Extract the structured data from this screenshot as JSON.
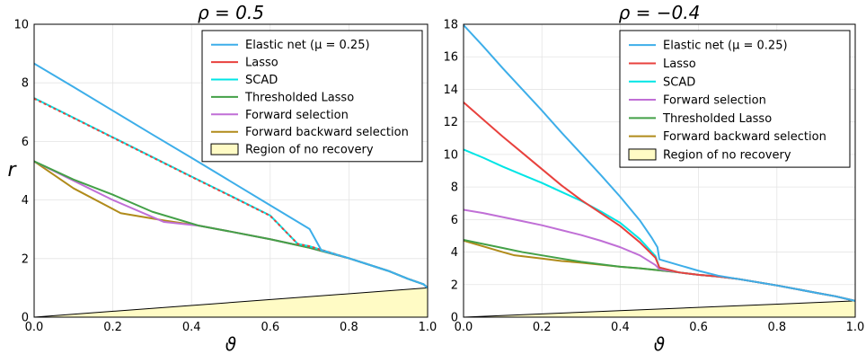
{
  "chart_data": [
    {
      "type": "line",
      "title": "ρ = 0.5",
      "xlabel": "ϑ",
      "ylabel": "r",
      "xlim": [
        0,
        1
      ],
      "ylim": [
        0,
        10
      ],
      "xticks": [
        "0.0",
        "0.2",
        "0.4",
        "0.6",
        "0.8",
        "1.0"
      ],
      "yticks": [
        "0",
        "2",
        "4",
        "6",
        "8",
        "10"
      ],
      "grid": true,
      "legend_position": "top-right",
      "legend": [
        {
          "label": "Elastic net (μ = 0.25)",
          "color": "#3daee9"
        },
        {
          "label": "Lasso",
          "color": "#e8413d"
        },
        {
          "label": "SCAD",
          "color": "#00e5e5"
        },
        {
          "label": "Thresholded Lasso",
          "color": "#43a047"
        },
        {
          "label": "Forward selection",
          "color": "#c06fd6"
        },
        {
          "label": "Forward backward selection",
          "color": "#b08b1a"
        },
        {
          "label": "Region of no recovery",
          "color": "#fffbc5",
          "kind": "area"
        }
      ],
      "series": [
        {
          "name": "Region of no recovery",
          "kind": "area",
          "color": "#fffbc5",
          "x": [
            0,
            1
          ],
          "y": [
            0,
            1
          ]
        },
        {
          "name": "Elastic net (μ = 0.25)",
          "color": "#3daee9",
          "x": [
            0,
            0.1,
            0.2,
            0.3,
            0.4,
            0.5,
            0.6,
            0.7,
            0.73,
            0.8,
            0.9,
            0.95,
            0.99,
            1.0
          ],
          "y": [
            8.66,
            7.86,
            7.05,
            6.24,
            5.44,
            4.63,
            3.82,
            3.01,
            2.28,
            2.01,
            1.58,
            1.31,
            1.12,
            1.0
          ]
        },
        {
          "name": "Lasso",
          "color": "#e8413d",
          "dash": "3,3",
          "x": [
            0,
            0.1,
            0.2,
            0.3,
            0.4,
            0.5,
            0.6,
            0.67,
            0.7,
            0.8,
            0.9,
            0.95,
            0.99,
            1.0
          ],
          "y": [
            7.46,
            6.8,
            6.13,
            5.46,
            4.79,
            4.13,
            3.46,
            2.5,
            2.42,
            2.01,
            1.58,
            1.31,
            1.12,
            1.0
          ]
        },
        {
          "name": "SCAD",
          "color": "#00e5e5",
          "x": [
            0,
            0.1,
            0.2,
            0.3,
            0.4,
            0.5,
            0.6,
            0.67,
            0.7,
            0.8,
            0.9,
            0.95,
            0.99,
            1.0
          ],
          "y": [
            7.48,
            6.81,
            6.14,
            5.47,
            4.8,
            4.14,
            3.47,
            2.5,
            2.42,
            2.01,
            1.58,
            1.31,
            1.12,
            1.0
          ]
        },
        {
          "name": "Thresholded Lasso",
          "color": "#43a047",
          "x": [
            0,
            0.1,
            0.2,
            0.3,
            0.42,
            0.5,
            0.6,
            0.7,
            0.8,
            0.9,
            0.95,
            0.99,
            1.0
          ],
          "y": [
            5.32,
            4.7,
            4.18,
            3.6,
            3.12,
            2.92,
            2.66,
            2.37,
            2.01,
            1.58,
            1.31,
            1.12,
            1.0
          ]
        },
        {
          "name": "Forward selection",
          "color": "#c06fd6",
          "x": [
            0,
            0.1,
            0.2,
            0.33,
            0.42,
            0.5,
            0.6,
            0.7,
            0.8,
            0.9,
            0.95,
            0.99,
            1.0
          ],
          "y": [
            5.32,
            4.66,
            4.0,
            3.25,
            3.12,
            2.92,
            2.66,
            2.37,
            2.01,
            1.58,
            1.31,
            1.12,
            1.0
          ]
        },
        {
          "name": "Forward backward selection",
          "color": "#b08b1a",
          "x": [
            0,
            0.1,
            0.22,
            0.33,
            0.42,
            0.5,
            0.6,
            0.7,
            0.8,
            0.9,
            0.95,
            0.99,
            1.0
          ],
          "y": [
            5.32,
            4.4,
            3.55,
            3.3,
            3.12,
            2.92,
            2.66,
            2.37,
            2.01,
            1.58,
            1.31,
            1.12,
            1.0
          ]
        }
      ]
    },
    {
      "type": "line",
      "title": "ρ = −0.4",
      "xlabel": "ϑ",
      "ylabel": "",
      "xlim": [
        0,
        1
      ],
      "ylim": [
        0,
        18
      ],
      "xticks": [
        "0.0",
        "0.2",
        "0.4",
        "0.6",
        "0.8",
        "1.0"
      ],
      "yticks": [
        "0",
        "2",
        "4",
        "6",
        "8",
        "10",
        "12",
        "14",
        "16",
        "18"
      ],
      "grid": true,
      "legend_position": "top-right",
      "legend": [
        {
          "label": "Elastic net (μ = 0.25)",
          "color": "#3daee9"
        },
        {
          "label": "Lasso",
          "color": "#e8413d"
        },
        {
          "label": "SCAD",
          "color": "#00e5e5"
        },
        {
          "label": "Forward selection",
          "color": "#c06fd6"
        },
        {
          "label": "Thresholded Lasso",
          "color": "#43a047"
        },
        {
          "label": "Forward backward selection",
          "color": "#b08b1a"
        },
        {
          "label": "Region of no recovery",
          "color": "#fffbc5",
          "kind": "area"
        }
      ],
      "series": [
        {
          "name": "Region of no recovery",
          "kind": "area",
          "color": "#fffbc5",
          "x": [
            0,
            1
          ],
          "y": [
            0,
            1
          ]
        },
        {
          "name": "Elastic net (μ = 0.25)",
          "color": "#3daee9",
          "x": [
            0,
            0.05,
            0.1,
            0.15,
            0.2,
            0.25,
            0.3,
            0.35,
            0.4,
            0.45,
            0.48,
            0.495,
            0.5,
            0.55,
            0.6,
            0.65,
            0.7,
            0.8,
            0.9,
            0.95,
            1.0
          ],
          "y": [
            17.95,
            16.65,
            15.3,
            14.0,
            12.7,
            11.35,
            10.05,
            8.75,
            7.4,
            5.95,
            4.9,
            4.3,
            3.55,
            3.2,
            2.85,
            2.55,
            2.35,
            1.95,
            1.5,
            1.28,
            1.0
          ]
        },
        {
          "name": "Lasso",
          "color": "#e8413d",
          "x": [
            0,
            0.05,
            0.1,
            0.15,
            0.2,
            0.25,
            0.3,
            0.35,
            0.4,
            0.45,
            0.49,
            0.5,
            0.55,
            0.6,
            0.65,
            0.7,
            0.8,
            0.9,
            0.95,
            1.0
          ],
          "y": [
            13.2,
            12.15,
            11.1,
            10.1,
            9.1,
            8.1,
            7.2,
            6.4,
            5.6,
            4.6,
            3.65,
            3.05,
            2.75,
            2.6,
            2.5,
            2.35,
            1.95,
            1.5,
            1.28,
            1.0
          ]
        },
        {
          "name": "SCAD",
          "color": "#00e5e5",
          "x": [
            0,
            0.05,
            0.1,
            0.15,
            0.2,
            0.25,
            0.3,
            0.35,
            0.4,
            0.45,
            0.49,
            0.5,
            0.55,
            0.6,
            0.65,
            0.7,
            0.8,
            0.9,
            0.95,
            1.0
          ],
          "y": [
            10.3,
            9.8,
            9.25,
            8.75,
            8.25,
            7.7,
            7.15,
            6.5,
            5.8,
            4.8,
            3.75,
            3.05,
            2.75,
            2.6,
            2.5,
            2.35,
            1.95,
            1.5,
            1.28,
            1.0
          ]
        },
        {
          "name": "Forward selection",
          "color": "#c06fd6",
          "x": [
            0,
            0.05,
            0.1,
            0.15,
            0.2,
            0.25,
            0.3,
            0.35,
            0.4,
            0.45,
            0.49,
            0.5,
            0.55,
            0.6,
            0.65,
            0.7,
            0.8,
            0.9,
            0.95,
            1.0
          ],
          "y": [
            6.6,
            6.4,
            6.15,
            5.9,
            5.65,
            5.35,
            5.05,
            4.7,
            4.3,
            3.8,
            3.2,
            2.95,
            2.75,
            2.6,
            2.5,
            2.35,
            1.95,
            1.5,
            1.28,
            1.0
          ]
        },
        {
          "name": "Thresholded Lasso",
          "color": "#43a047",
          "x": [
            0,
            0.05,
            0.1,
            0.15,
            0.2,
            0.25,
            0.3,
            0.35,
            0.4,
            0.45,
            0.5,
            0.55,
            0.6,
            0.65,
            0.7,
            0.8,
            0.9,
            0.95,
            1.0
          ],
          "y": [
            4.75,
            4.5,
            4.25,
            4.0,
            3.8,
            3.6,
            3.4,
            3.25,
            3.1,
            3.0,
            2.88,
            2.75,
            2.6,
            2.5,
            2.35,
            1.95,
            1.5,
            1.28,
            1.0
          ]
        },
        {
          "name": "Forward backward selection",
          "color": "#b08b1a",
          "x": [
            0,
            0.05,
            0.1,
            0.13,
            0.2,
            0.25,
            0.3,
            0.35,
            0.4,
            0.45,
            0.5,
            0.55,
            0.6,
            0.65,
            0.7,
            0.8,
            0.9,
            0.95,
            1.0
          ],
          "y": [
            4.7,
            4.35,
            4.0,
            3.8,
            3.6,
            3.45,
            3.35,
            3.22,
            3.1,
            3.0,
            2.88,
            2.75,
            2.6,
            2.5,
            2.35,
            1.95,
            1.5,
            1.28,
            1.0
          ]
        }
      ]
    }
  ]
}
